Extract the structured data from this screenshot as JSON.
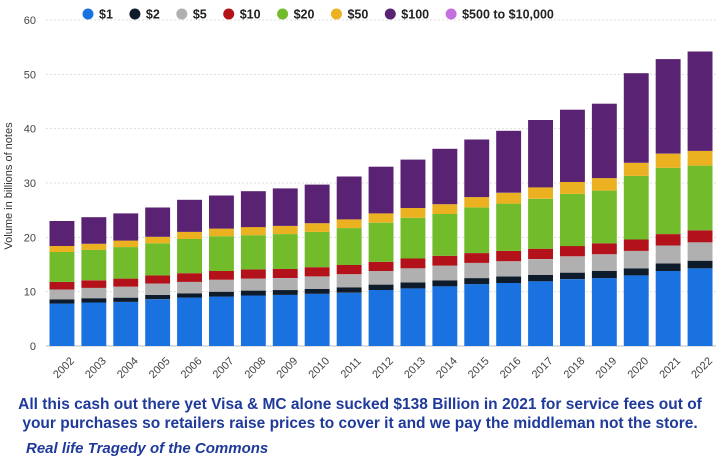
{
  "chart_data": {
    "type": "bar",
    "stacked": true,
    "ylabel": "Volume in billions of notes",
    "ylim": [
      0,
      60
    ],
    "yticks": [
      0,
      10,
      20,
      30,
      40,
      50,
      60
    ],
    "grid": true,
    "legend_position": "top",
    "categories": [
      "2002",
      "2003",
      "2004",
      "2005",
      "2006",
      "2007",
      "2008",
      "2009",
      "2010",
      "2011",
      "2012",
      "2013",
      "2014",
      "2015",
      "2016",
      "2017",
      "2018",
      "2019",
      "2020",
      "2021",
      "2022"
    ],
    "series": [
      {
        "name": "$1",
        "color": "#1a72e0",
        "values": [
          7.8,
          8.0,
          8.1,
          8.6,
          8.9,
          9.1,
          9.3,
          9.4,
          9.6,
          9.8,
          10.3,
          10.6,
          11.0,
          11.4,
          11.6,
          11.9,
          12.3,
          12.5,
          13.0,
          13.8,
          14.3
        ]
      },
      {
        "name": "$2",
        "color": "#0d1b2a",
        "values": [
          0.8,
          0.8,
          0.8,
          0.8,
          0.8,
          0.9,
          0.9,
          0.9,
          0.9,
          1.0,
          1.0,
          1.1,
          1.1,
          1.1,
          1.2,
          1.2,
          1.2,
          1.3,
          1.3,
          1.4,
          1.4
        ]
      },
      {
        "name": "$5",
        "color": "#b0b0b0",
        "values": [
          1.8,
          1.9,
          2.0,
          2.1,
          2.1,
          2.2,
          2.2,
          2.2,
          2.3,
          2.4,
          2.5,
          2.6,
          2.7,
          2.8,
          2.8,
          2.9,
          3.0,
          3.1,
          3.2,
          3.3,
          3.4
        ]
      },
      {
        "name": "$10",
        "color": "#b3121a",
        "values": [
          1.4,
          1.4,
          1.5,
          1.5,
          1.6,
          1.6,
          1.7,
          1.7,
          1.7,
          1.7,
          1.7,
          1.8,
          1.8,
          1.8,
          1.9,
          1.9,
          1.9,
          2.0,
          2.1,
          2.1,
          2.2
        ]
      },
      {
        "name": "$20",
        "color": "#72bb2a",
        "values": [
          5.5,
          5.6,
          5.8,
          5.9,
          6.3,
          6.4,
          6.3,
          6.4,
          6.5,
          6.8,
          7.2,
          7.5,
          7.7,
          8.4,
          8.7,
          9.2,
          9.6,
          9.7,
          11.7,
          12.2,
          11.9
        ]
      },
      {
        "name": "$50",
        "color": "#ebb120",
        "values": [
          1.1,
          1.1,
          1.2,
          1.2,
          1.3,
          1.4,
          1.5,
          1.5,
          1.6,
          1.6,
          1.7,
          1.8,
          1.8,
          1.9,
          2.0,
          2.1,
          2.2,
          2.3,
          2.4,
          2.6,
          2.7
        ]
      },
      {
        "name": "$100",
        "color": "#5a2273",
        "values": [
          4.6,
          4.9,
          5.0,
          5.4,
          5.9,
          6.1,
          6.6,
          6.9,
          7.1,
          7.9,
          8.6,
          8.9,
          10.2,
          10.6,
          11.4,
          12.4,
          13.3,
          13.7,
          16.5,
          17.4,
          18.3
        ]
      },
      {
        "name": "$500 to $10,000",
        "color": "#c46ee0",
        "values": [
          0,
          0,
          0,
          0,
          0,
          0,
          0,
          0,
          0,
          0,
          0,
          0,
          0,
          0,
          0,
          0,
          0,
          0,
          0,
          0,
          0
        ]
      }
    ]
  },
  "captions": {
    "main": "All this cash out there yet Visa & MC alone sucked $138 Billion in 2021 for service fees out of your purchases so retailers raise prices to cover it and we pay the middleman not the store.",
    "sub": "Real life Tragedy of the Commons"
  }
}
